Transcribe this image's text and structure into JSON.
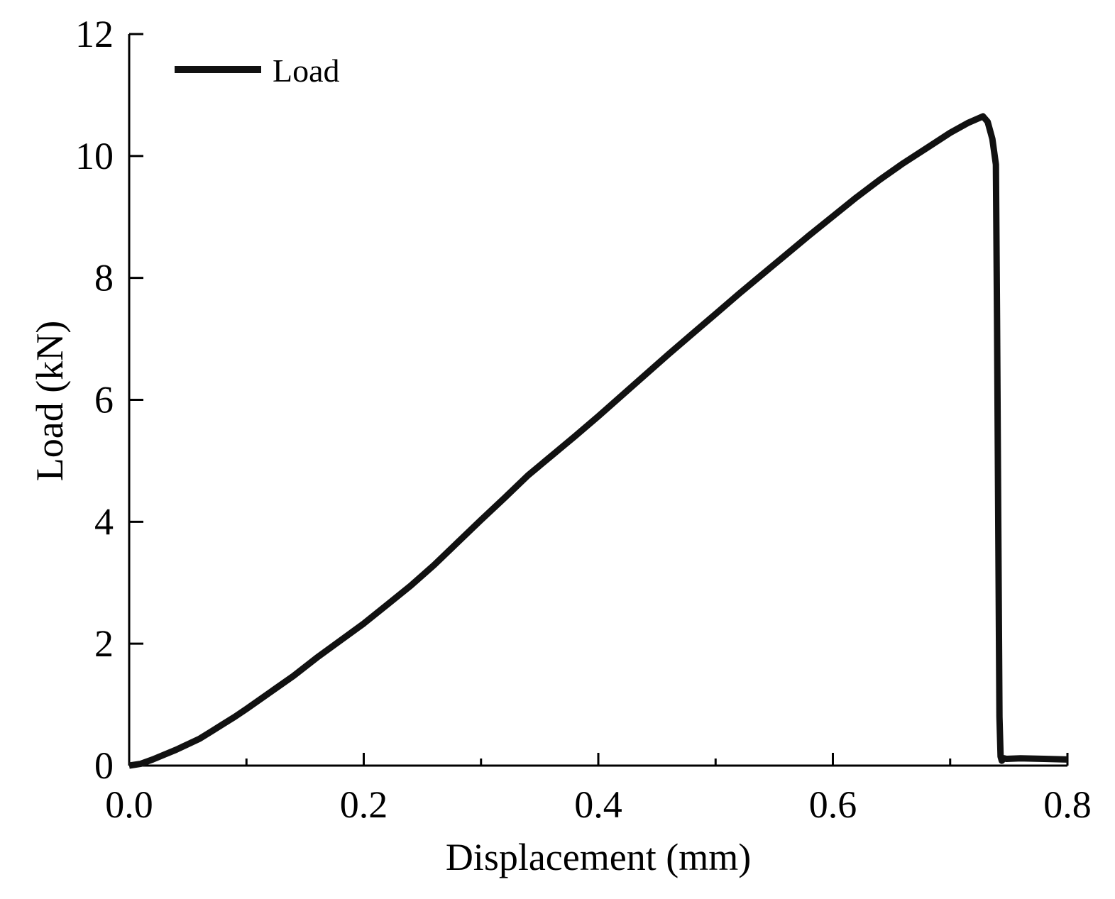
{
  "chart_data": {
    "type": "line",
    "title": "",
    "xlabel": "Displacement (mm)",
    "ylabel": "Load (kN)",
    "xlim": [
      0.0,
      0.8
    ],
    "ylim": [
      0,
      12
    ],
    "x_ticks": [
      0.0,
      0.2,
      0.4,
      0.6,
      0.8
    ],
    "x_tick_labels": [
      "0.0",
      "0.2",
      "0.4",
      "0.6",
      "0.8"
    ],
    "x_minor_ticks": [
      0.1,
      0.3,
      0.5,
      0.7
    ],
    "y_ticks": [
      0,
      2,
      4,
      6,
      8,
      10,
      12
    ],
    "y_tick_labels": [
      "0",
      "2",
      "4",
      "6",
      "8",
      "10",
      "12"
    ],
    "grid": false,
    "legend_position": "top-left",
    "series": [
      {
        "name": "Load",
        "color": "#111111",
        "x": [
          0.0,
          0.01,
          0.02,
          0.03,
          0.04,
          0.05,
          0.06,
          0.07,
          0.08,
          0.09,
          0.1,
          0.12,
          0.14,
          0.16,
          0.18,
          0.2,
          0.22,
          0.24,
          0.26,
          0.28,
          0.3,
          0.32,
          0.34,
          0.36,
          0.38,
          0.4,
          0.42,
          0.44,
          0.46,
          0.48,
          0.5,
          0.52,
          0.54,
          0.56,
          0.58,
          0.6,
          0.62,
          0.64,
          0.66,
          0.68,
          0.7,
          0.715,
          0.728,
          0.732,
          0.736,
          0.739,
          0.74,
          0.741,
          0.742,
          0.743,
          0.744,
          0.746,
          0.748,
          0.76,
          0.78,
          0.8
        ],
        "y": [
          0.0,
          0.03,
          0.1,
          0.18,
          0.26,
          0.35,
          0.44,
          0.56,
          0.68,
          0.8,
          0.93,
          1.2,
          1.47,
          1.77,
          2.05,
          2.33,
          2.64,
          2.95,
          3.29,
          3.66,
          4.03,
          4.39,
          4.76,
          5.08,
          5.4,
          5.73,
          6.07,
          6.41,
          6.75,
          7.08,
          7.41,
          7.74,
          8.06,
          8.38,
          8.7,
          9.01,
          9.32,
          9.61,
          9.88,
          10.13,
          10.38,
          10.54,
          10.65,
          10.56,
          10.28,
          9.86,
          7.3,
          4.0,
          0.8,
          0.15,
          0.08,
          0.12,
          0.11,
          0.12,
          0.11,
          0.1
        ]
      }
    ]
  }
}
